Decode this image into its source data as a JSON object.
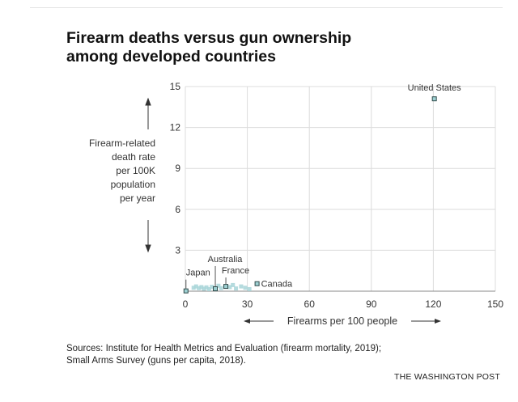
{
  "title_line1": "Firearm deaths versus gun ownership",
  "title_line2": "among developed countries",
  "sources_line1": "Sources: Institute for Health Metrics and Evaluation (firearm mortality, 2019);",
  "sources_line2": "Small Arms Survey (guns per capita, 2018).",
  "credit": "THE WASHINGTON POST",
  "colors": {
    "grid": "#dcdcdc",
    "axis": "#888888",
    "point_fill": "#9fd1d3",
    "point_stroke": "#2e4a4a",
    "other_fill": "#a8d5d8",
    "text": "#333333"
  },
  "chart_data": {
    "type": "scatter",
    "xlabel": "Firearms per 100 people",
    "ylabel_lines": [
      "Firearm-related",
      "death rate",
      "per 100K",
      "population",
      "per year"
    ],
    "xlim": [
      0,
      150
    ],
    "ylim": [
      0,
      15
    ],
    "xticks": [
      0,
      30,
      60,
      90,
      120,
      150
    ],
    "yticks": [
      3,
      6,
      9,
      12,
      15
    ],
    "grid": true,
    "labeled_points": [
      {
        "name": "United States",
        "x": 120.5,
        "y": 14.1
      },
      {
        "name": "Canada",
        "x": 34.7,
        "y": 0.55
      },
      {
        "name": "France",
        "x": 19.6,
        "y": 0.35
      },
      {
        "name": "Australia",
        "x": 14.5,
        "y": 0.18
      },
      {
        "name": "Japan",
        "x": 0.3,
        "y": 0.02
      }
    ],
    "other_points": [
      {
        "x": 4.0,
        "y": 0.25
      },
      {
        "x": 5.2,
        "y": 0.35
      },
      {
        "x": 6.5,
        "y": 0.22
      },
      {
        "x": 7.8,
        "y": 0.3
      },
      {
        "x": 9.0,
        "y": 0.18
      },
      {
        "x": 10.2,
        "y": 0.28
      },
      {
        "x": 11.5,
        "y": 0.15
      },
      {
        "x": 12.8,
        "y": 0.32
      },
      {
        "x": 16.0,
        "y": 0.4
      },
      {
        "x": 17.3,
        "y": 0.22
      },
      {
        "x": 21.5,
        "y": 0.3
      },
      {
        "x": 23.0,
        "y": 0.45
      },
      {
        "x": 24.5,
        "y": 0.2
      },
      {
        "x": 27.0,
        "y": 0.35
      },
      {
        "x": 29.0,
        "y": 0.25
      },
      {
        "x": 31.0,
        "y": 0.15
      }
    ]
  }
}
